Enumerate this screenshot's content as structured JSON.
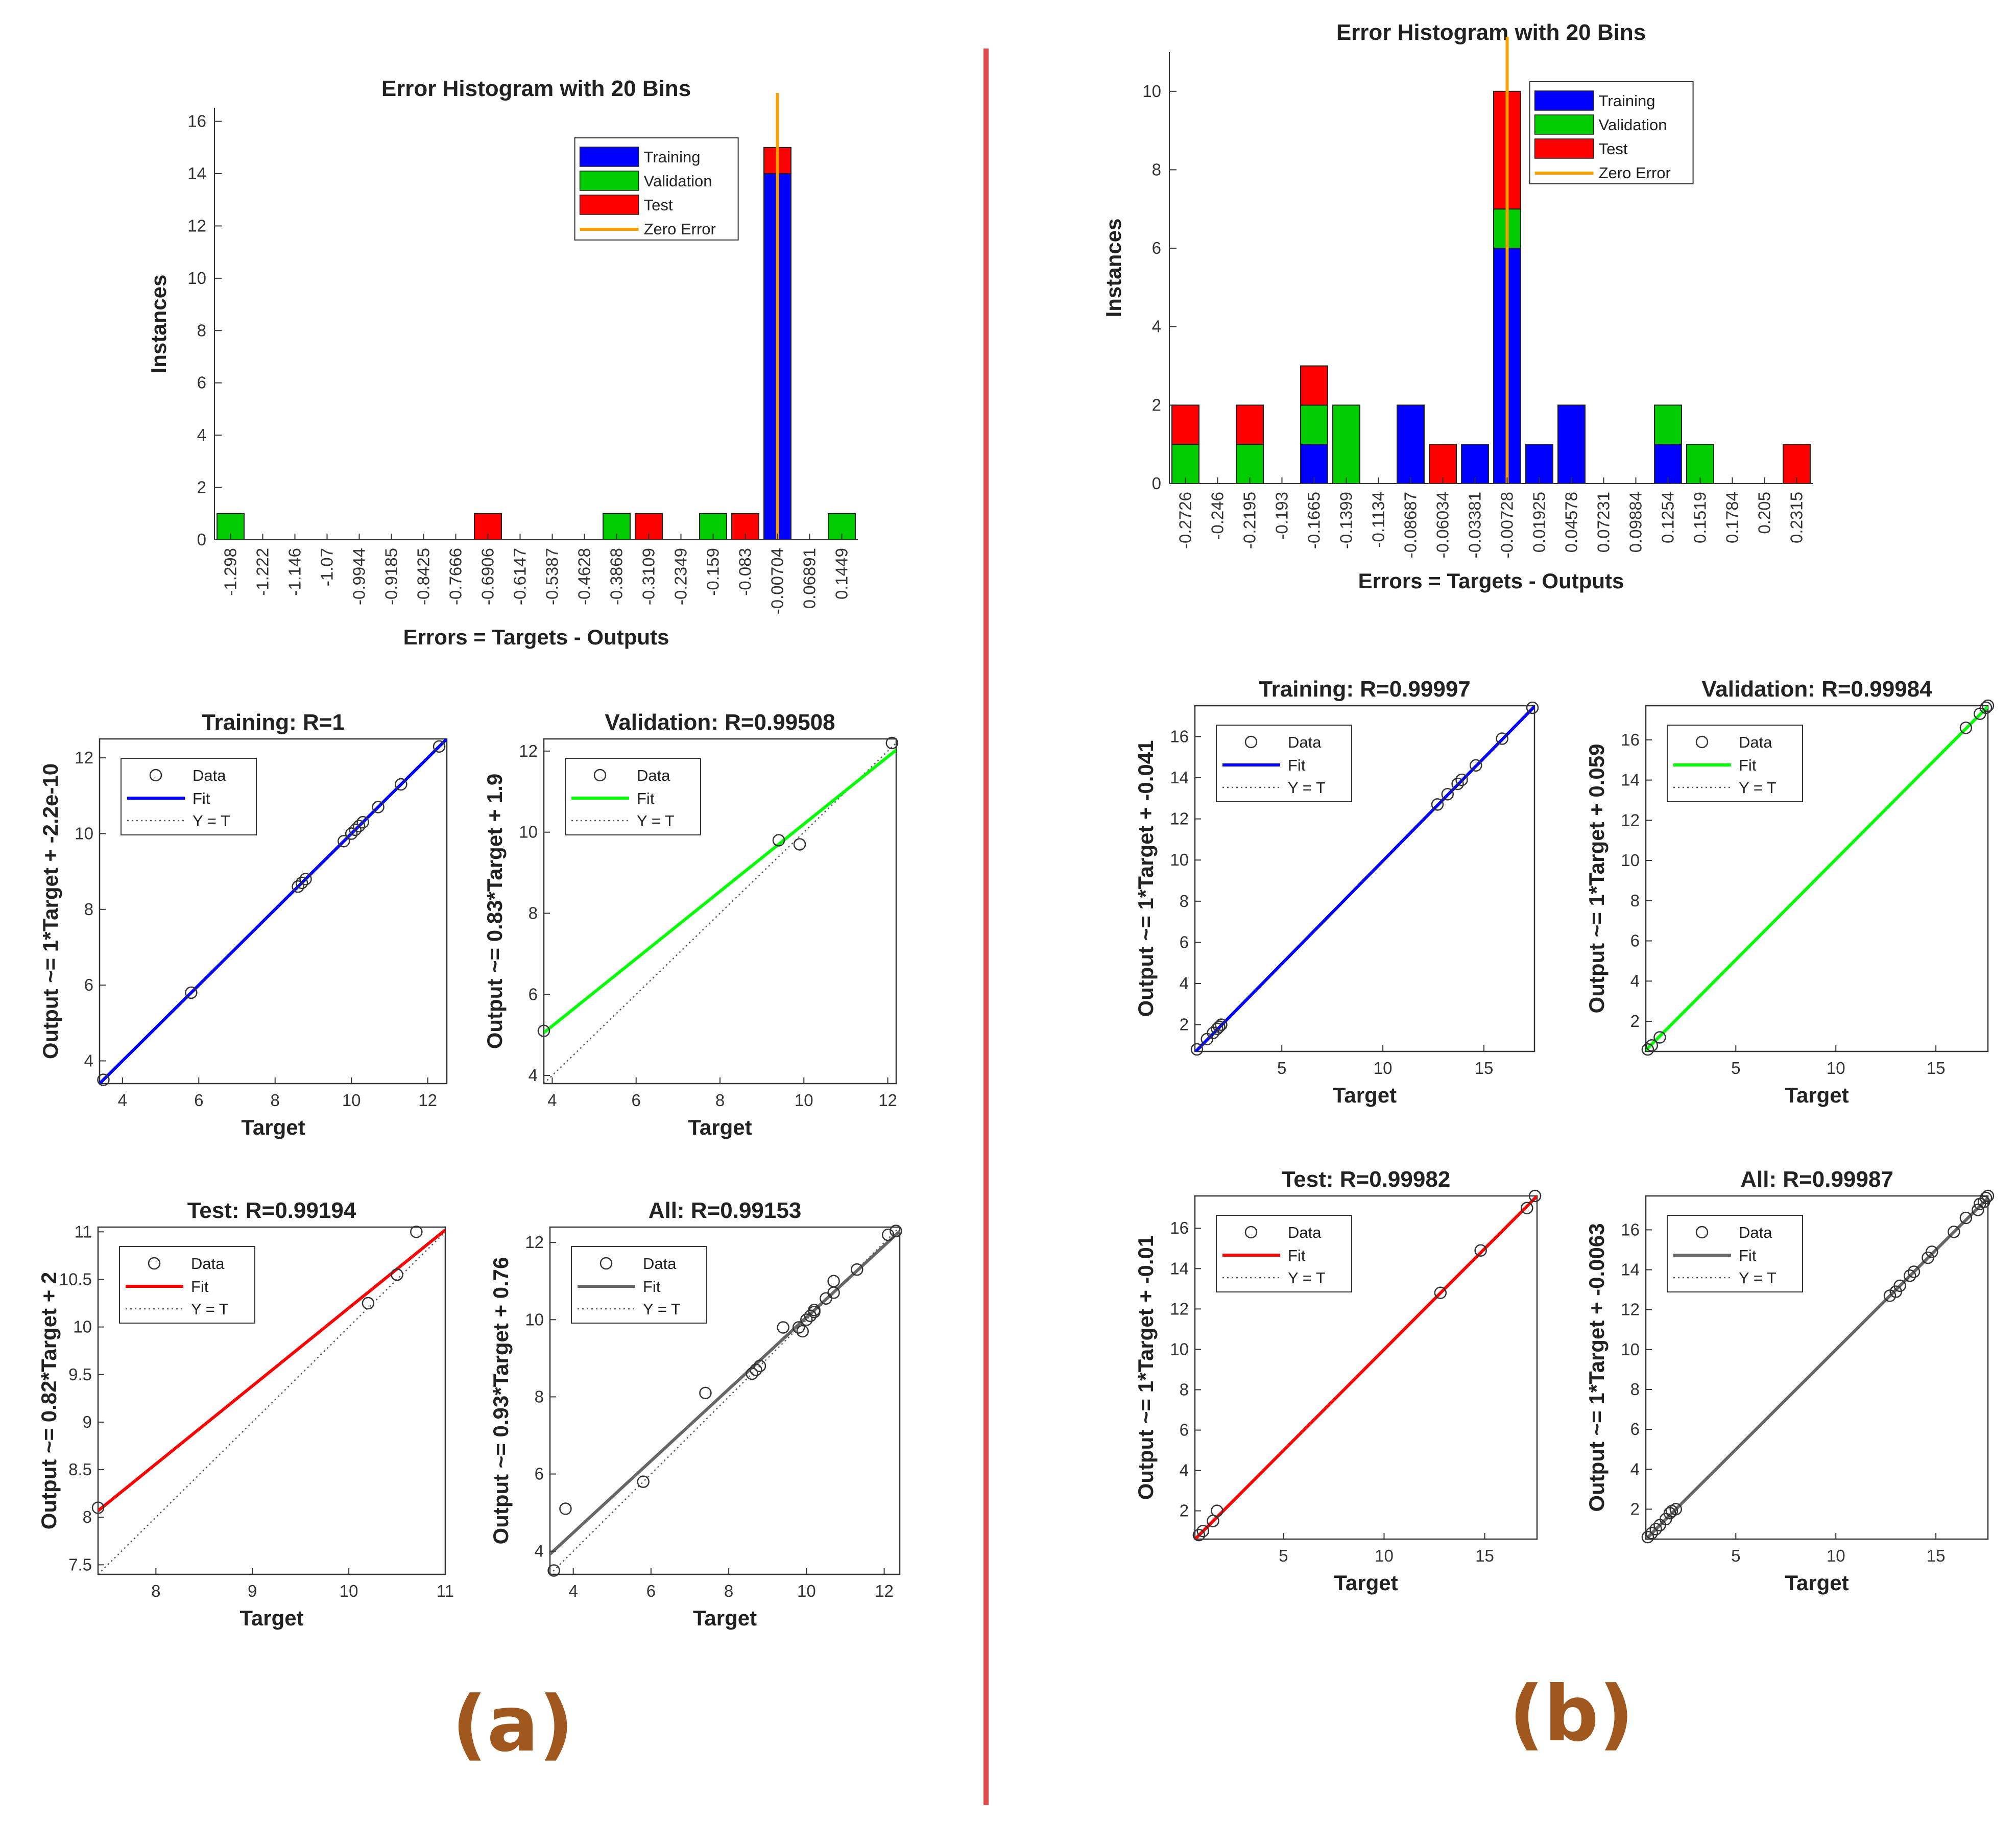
{
  "labels": {
    "left": "(a)",
    "right": "(b)"
  },
  "colors": {
    "training": "#0000ff",
    "validation": "#00cc00",
    "test": "#ff0000",
    "zero_error": "#f5a000",
    "divider": "#e04a4a",
    "panel_label": "#a0581f",
    "fit_training": "#0000ff",
    "fit_validation": "#00ff00",
    "fit_test": "#ff0000",
    "fit_all": "#666666"
  },
  "chart_data": [
    {
      "id": "hist_a",
      "type": "bar",
      "stacked": true,
      "title": "Error Histogram with 20 Bins",
      "xlabel": "Errors = Targets - Outputs",
      "ylabel": "Instances",
      "categories": [
        "-1.298",
        "-1.222",
        "-1.146",
        "-1.07",
        "-0.9944",
        "-0.9185",
        "-0.8425",
        "-0.7666",
        "-0.6906",
        "-0.6147",
        "-0.5387",
        "-0.4628",
        "-0.3868",
        "-0.3109",
        "-0.2349",
        "-0.159",
        "-0.083",
        "-0.00704",
        "0.06891",
        "0.1449"
      ],
      "series": [
        {
          "name": "Training",
          "values": [
            0,
            0,
            0,
            0,
            0,
            0,
            0,
            0,
            0,
            0,
            0,
            0,
            0,
            0,
            0,
            0,
            0,
            14,
            0,
            0
          ]
        },
        {
          "name": "Validation",
          "values": [
            1,
            0,
            0,
            0,
            0,
            0,
            0,
            0,
            0,
            0,
            0,
            0,
            1,
            0,
            0,
            1,
            0,
            0,
            0,
            1
          ]
        },
        {
          "name": "Test",
          "values": [
            0,
            0,
            0,
            0,
            0,
            0,
            0,
            0,
            1,
            0,
            0,
            0,
            0,
            1,
            0,
            0,
            1,
            1,
            0,
            0
          ]
        }
      ],
      "zero_error_bin": 17,
      "zero_error_label": "Zero Error",
      "ylim": [
        0,
        16.5
      ],
      "yticks": [
        0,
        2,
        4,
        6,
        8,
        10,
        12,
        14,
        16
      ],
      "legend": [
        "Training",
        "Validation",
        "Test",
        "Zero Error"
      ],
      "legend_position": "top-right"
    },
    {
      "id": "hist_b",
      "type": "bar",
      "stacked": true,
      "title": "Error Histogram with 20 Bins",
      "xlabel": "Errors = Targets - Outputs",
      "ylabel": "Instances",
      "categories": [
        "-0.2726",
        "-0.246",
        "-0.2195",
        "-0.193",
        "-0.1665",
        "-0.1399",
        "-0.1134",
        "-0.08687",
        "-0.06034",
        "-0.03381",
        "-0.00728",
        "0.01925",
        "0.04578",
        "0.07231",
        "0.09884",
        "0.1254",
        "0.1519",
        "0.1784",
        "0.205",
        "0.2315"
      ],
      "series": [
        {
          "name": "Training",
          "values": [
            0,
            0,
            0,
            0,
            1,
            0,
            0,
            2,
            0,
            1,
            6,
            1,
            2,
            0,
            0,
            1,
            0,
            0,
            0,
            0
          ]
        },
        {
          "name": "Validation",
          "values": [
            1,
            0,
            1,
            0,
            1,
            2,
            0,
            0,
            0,
            0,
            1,
            0,
            0,
            0,
            0,
            1,
            1,
            0,
            0,
            0
          ]
        },
        {
          "name": "Test",
          "values": [
            1,
            0,
            1,
            0,
            1,
            0,
            0,
            0,
            1,
            0,
            3,
            0,
            0,
            0,
            0,
            0,
            0,
            0,
            0,
            1
          ]
        }
      ],
      "zero_error_bin": 10,
      "zero_error_label": "Zero Error",
      "ylim": [
        0,
        11
      ],
      "yticks": [
        0,
        2,
        4,
        6,
        8,
        10
      ],
      "legend": [
        "Training",
        "Validation",
        "Test",
        "Zero Error"
      ],
      "legend_position": "top-right"
    },
    {
      "id": "reg_a_train",
      "type": "scatter",
      "title": "Training: R=1",
      "xlabel": "Target",
      "ylabel": "Output ~= 1*Target + -2.2e-10",
      "xlim": [
        3.4,
        12.5
      ],
      "ylim": [
        3.4,
        12.5
      ],
      "xticks": [
        4,
        6,
        8,
        10,
        12
      ],
      "yticks": [
        4,
        6,
        8,
        10,
        12
      ],
      "fit": {
        "slope": 1,
        "intercept": 0
      },
      "fit_color_key": "fit_training",
      "x": [
        3.5,
        5.8,
        8.6,
        8.7,
        8.8,
        9.8,
        10.0,
        10.1,
        10.2,
        10.3,
        10.7,
        11.3,
        12.3
      ],
      "y": [
        3.5,
        5.8,
        8.6,
        8.7,
        8.8,
        9.8,
        10.0,
        10.1,
        10.2,
        10.3,
        10.7,
        11.3,
        12.3
      ],
      "legend": [
        "Data",
        "Fit",
        "Y = T"
      ],
      "legend_position": "top-left"
    },
    {
      "id": "reg_a_val",
      "type": "scatter",
      "title": "Validation: R=0.99508",
      "xlabel": "Target",
      "ylabel": "Output ~= 0.83*Target + 1.9",
      "xlim": [
        3.8,
        12.2
      ],
      "ylim": [
        3.8,
        12.3
      ],
      "xticks": [
        4,
        6,
        8,
        10,
        12
      ],
      "yticks": [
        4,
        6,
        8,
        10,
        12
      ],
      "fit": {
        "slope": 0.83,
        "intercept": 1.9
      },
      "fit_color_key": "fit_validation",
      "x": [
        3.8,
        9.4,
        9.9,
        12.1
      ],
      "y": [
        5.1,
        9.8,
        9.7,
        12.2
      ],
      "legend": [
        "Data",
        "Fit",
        "Y = T"
      ],
      "legend_position": "top-left"
    },
    {
      "id": "reg_a_test",
      "type": "scatter",
      "title": "Test: R=0.99194",
      "xlabel": "Target",
      "ylabel": "Output ~= 0.82*Target + 2",
      "xlim": [
        7.4,
        11.0
      ],
      "ylim": [
        7.4,
        11.05
      ],
      "xticks": [
        8,
        9,
        10,
        11
      ],
      "yticks": [
        7.5,
        8,
        8.5,
        9,
        9.5,
        10,
        10.5,
        11
      ],
      "fit": {
        "slope": 0.82,
        "intercept": 2
      },
      "fit_color_key": "fit_test",
      "x": [
        7.4,
        10.2,
        10.5,
        10.7
      ],
      "y": [
        8.1,
        10.25,
        10.55,
        11.0
      ],
      "legend": [
        "Data",
        "Fit",
        "Y = T"
      ],
      "legend_position": "top-left"
    },
    {
      "id": "reg_a_all",
      "type": "scatter",
      "title": "All: R=0.99153",
      "xlabel": "Target",
      "ylabel": "Output ~= 0.93*Target + 0.76",
      "xlim": [
        3.4,
        12.4
      ],
      "ylim": [
        3.4,
        12.4
      ],
      "xticks": [
        4,
        6,
        8,
        10,
        12
      ],
      "yticks": [
        4,
        6,
        8,
        10,
        12
      ],
      "fit": {
        "slope": 0.93,
        "intercept": 0.76
      },
      "fit_color_key": "fit_all",
      "x": [
        3.5,
        3.8,
        5.8,
        7.4,
        8.6,
        8.7,
        8.8,
        9.4,
        9.8,
        9.9,
        10.0,
        10.1,
        10.2,
        10.2,
        10.5,
        10.7,
        10.7,
        11.3,
        12.1,
        12.3
      ],
      "y": [
        3.5,
        5.1,
        5.8,
        8.1,
        8.6,
        8.7,
        8.8,
        9.8,
        9.8,
        9.7,
        10.0,
        10.1,
        10.2,
        10.25,
        10.55,
        11.0,
        10.7,
        11.3,
        12.2,
        12.3
      ],
      "legend": [
        "Data",
        "Fit",
        "Y = T"
      ],
      "legend_position": "top-left"
    },
    {
      "id": "reg_b_train",
      "type": "scatter",
      "title": "Training: R=0.99997",
      "xlabel": "Target",
      "ylabel": "Output ~= 1*Target + -0.041",
      "xlim": [
        0.7,
        17.5
      ],
      "ylim": [
        0.7,
        17.5
      ],
      "xticks": [
        5,
        10,
        15
      ],
      "yticks": [
        2,
        4,
        6,
        8,
        10,
        12,
        14,
        16
      ],
      "fit": {
        "slope": 1,
        "intercept": -0.041
      },
      "fit_color_key": "fit_training",
      "x": [
        0.8,
        1.3,
        1.6,
        1.8,
        1.9,
        2.0,
        12.7,
        13.2,
        13.7,
        13.9,
        14.6,
        15.9,
        17.4
      ],
      "y": [
        0.8,
        1.3,
        1.6,
        1.8,
        1.9,
        2.0,
        12.7,
        13.2,
        13.7,
        13.9,
        14.6,
        15.9,
        17.4
      ],
      "legend": [
        "Data",
        "Fit",
        "Y = T"
      ],
      "legend_position": "top-left"
    },
    {
      "id": "reg_b_val",
      "type": "scatter",
      "title": "Validation: R=0.99984",
      "xlabel": "Target",
      "ylabel": "Output ~= 1*Target + 0.059",
      "xlim": [
        0.5,
        17.6
      ],
      "ylim": [
        0.5,
        17.7
      ],
      "xticks": [
        5,
        10,
        15
      ],
      "yticks": [
        2,
        4,
        6,
        8,
        10,
        12,
        14,
        16
      ],
      "fit": {
        "slope": 1,
        "intercept": 0.059
      },
      "fit_color_key": "fit_validation",
      "x": [
        0.6,
        0.8,
        1.2,
        16.5,
        17.2,
        17.5,
        17.6
      ],
      "y": [
        0.6,
        0.8,
        1.2,
        16.6,
        17.3,
        17.6,
        17.7
      ],
      "legend": [
        "Data",
        "Fit",
        "Y = T"
      ],
      "legend_position": "top-left"
    },
    {
      "id": "reg_b_test",
      "type": "scatter",
      "title": "Test: R=0.99982",
      "xlabel": "Target",
      "ylabel": "Output ~= 1*Target + -0.01",
      "xlim": [
        0.6,
        17.6
      ],
      "ylim": [
        0.6,
        17.6
      ],
      "xticks": [
        5,
        10,
        15
      ],
      "yticks": [
        2,
        4,
        6,
        8,
        10,
        12,
        14,
        16
      ],
      "fit": {
        "slope": 1,
        "intercept": -0.01
      },
      "fit_color_key": "fit_test",
      "x": [
        0.8,
        1.0,
        1.5,
        1.7,
        12.8,
        14.8,
        17.1,
        17.5
      ],
      "y": [
        0.8,
        1.0,
        1.5,
        2.0,
        12.8,
        14.9,
        17.0,
        17.6
      ],
      "legend": [
        "Data",
        "Fit",
        "Y = T"
      ],
      "legend_position": "top-left"
    },
    {
      "id": "reg_b_all",
      "type": "scatter",
      "title": "All: R=0.99987",
      "xlabel": "Target",
      "ylabel": "Output ~= 1*Target + -0.0063",
      "xlim": [
        0.5,
        17.6
      ],
      "ylim": [
        0.5,
        17.7
      ],
      "xticks": [
        5,
        10,
        15
      ],
      "yticks": [
        2,
        4,
        6,
        8,
        10,
        12,
        14,
        16
      ],
      "fit": {
        "slope": 1,
        "intercept": -0.0063
      },
      "fit_color_key": "fit_all",
      "x": [
        0.6,
        0.8,
        1.0,
        1.2,
        1.5,
        1.7,
        1.8,
        2.0,
        12.7,
        13.0,
        13.2,
        13.7,
        13.9,
        14.6,
        14.8,
        15.9,
        16.5,
        17.1,
        17.2,
        17.4,
        17.5,
        17.6
      ],
      "y": [
        0.6,
        0.8,
        1.0,
        1.2,
        1.5,
        1.8,
        1.9,
        2.0,
        12.7,
        12.9,
        13.2,
        13.7,
        13.9,
        14.6,
        14.9,
        15.9,
        16.6,
        17.0,
        17.3,
        17.4,
        17.6,
        17.7
      ],
      "legend": [
        "Data",
        "Fit",
        "Y = T"
      ],
      "legend_position": "top-left"
    }
  ]
}
